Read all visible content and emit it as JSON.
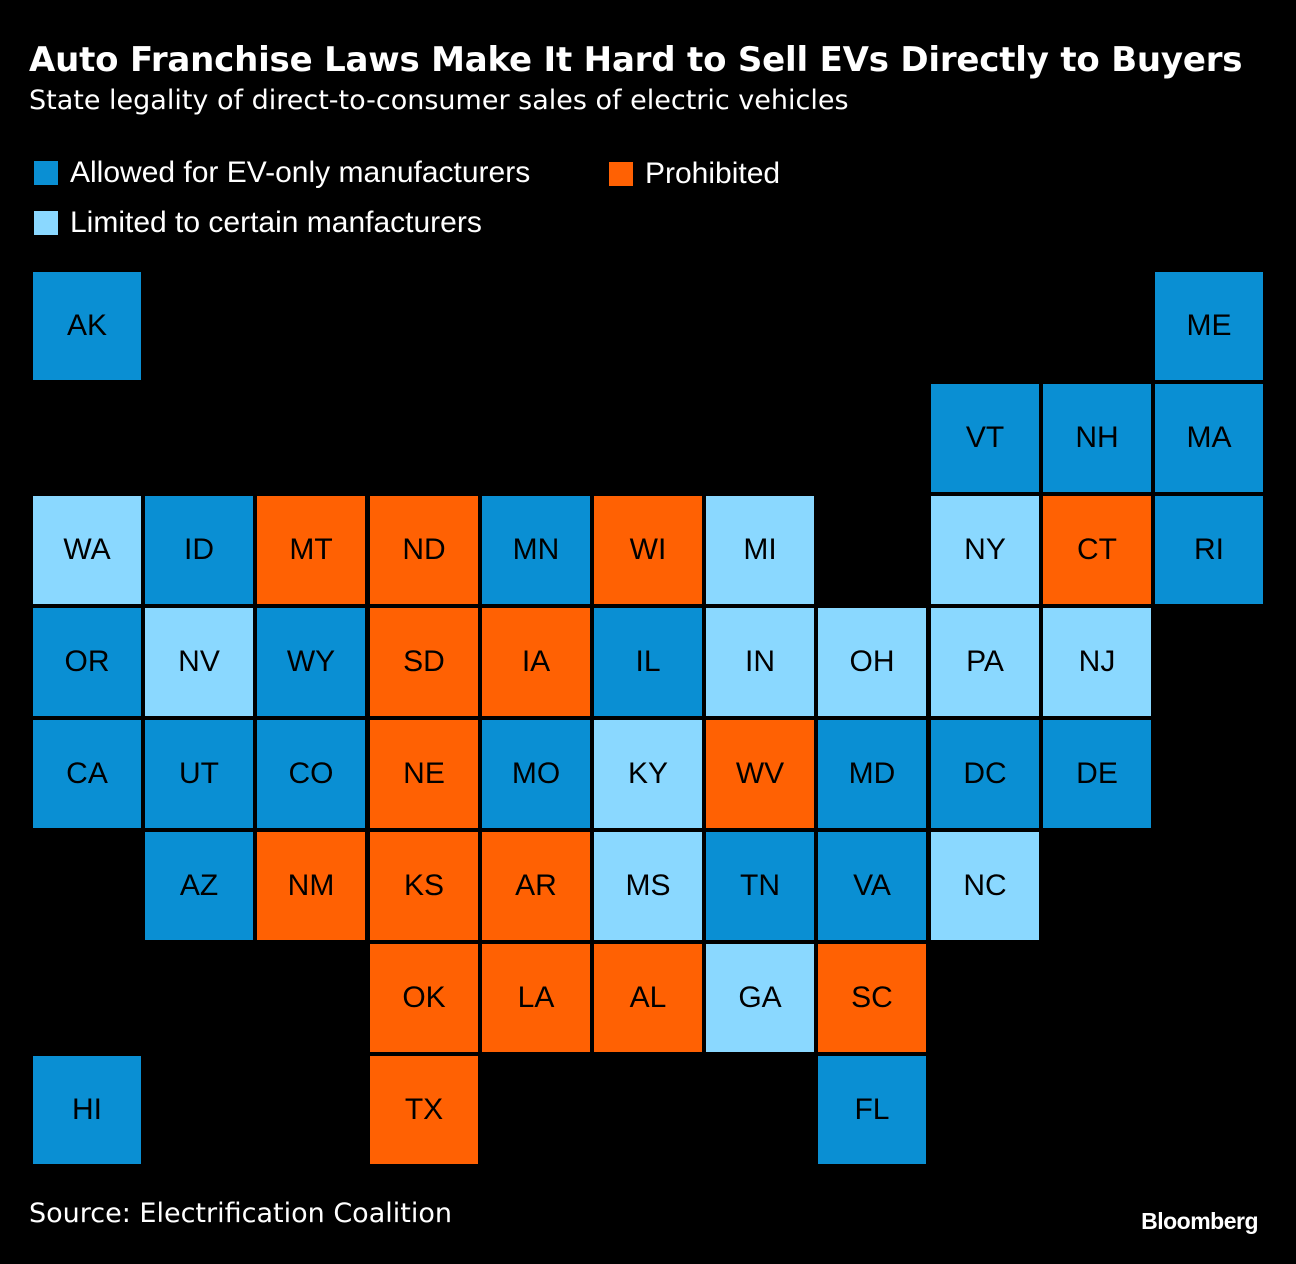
{
  "title": "Auto Franchise Laws Make It Hard to Sell EVs Directly to Buyers",
  "subtitle": "State legality of direct-to-consumer sales of electric vehicles",
  "colors": {
    "allowed": "#0A8FD3",
    "limited": "#8AD8FF",
    "prohibited": "#FF6103",
    "background": "#000000"
  },
  "legend": {
    "allowed": "Allowed for EV-only manufacturers",
    "prohibited": "Prohibited",
    "limited": "Limited to certain manfacturers"
  },
  "states": [
    {
      "abbr": "AK",
      "status": "allowed",
      "row": 0,
      "col": 0
    },
    {
      "abbr": "ME",
      "status": "allowed",
      "row": 0,
      "col": 10
    },
    {
      "abbr": "VT",
      "status": "allowed",
      "row": 1,
      "col": 8
    },
    {
      "abbr": "NH",
      "status": "allowed",
      "row": 1,
      "col": 9
    },
    {
      "abbr": "MA",
      "status": "allowed",
      "row": 1,
      "col": 10
    },
    {
      "abbr": "WA",
      "status": "limited",
      "row": 2,
      "col": 0
    },
    {
      "abbr": "ID",
      "status": "allowed",
      "row": 2,
      "col": 1
    },
    {
      "abbr": "MT",
      "status": "prohibited",
      "row": 2,
      "col": 2
    },
    {
      "abbr": "ND",
      "status": "prohibited",
      "row": 2,
      "col": 3
    },
    {
      "abbr": "MN",
      "status": "allowed",
      "row": 2,
      "col": 4
    },
    {
      "abbr": "WI",
      "status": "prohibited",
      "row": 2,
      "col": 5
    },
    {
      "abbr": "MI",
      "status": "limited",
      "row": 2,
      "col": 6
    },
    {
      "abbr": "NY",
      "status": "limited",
      "row": 2,
      "col": 8
    },
    {
      "abbr": "CT",
      "status": "prohibited",
      "row": 2,
      "col": 9
    },
    {
      "abbr": "RI",
      "status": "allowed",
      "row": 2,
      "col": 10
    },
    {
      "abbr": "OR",
      "status": "allowed",
      "row": 3,
      "col": 0
    },
    {
      "abbr": "NV",
      "status": "limited",
      "row": 3,
      "col": 1
    },
    {
      "abbr": "WY",
      "status": "allowed",
      "row": 3,
      "col": 2
    },
    {
      "abbr": "SD",
      "status": "prohibited",
      "row": 3,
      "col": 3
    },
    {
      "abbr": "IA",
      "status": "prohibited",
      "row": 3,
      "col": 4
    },
    {
      "abbr": "IL",
      "status": "allowed",
      "row": 3,
      "col": 5
    },
    {
      "abbr": "IN",
      "status": "limited",
      "row": 3,
      "col": 6
    },
    {
      "abbr": "OH",
      "status": "limited",
      "row": 3,
      "col": 7
    },
    {
      "abbr": "PA",
      "status": "limited",
      "row": 3,
      "col": 8
    },
    {
      "abbr": "NJ",
      "status": "limited",
      "row": 3,
      "col": 9
    },
    {
      "abbr": "CA",
      "status": "allowed",
      "row": 4,
      "col": 0
    },
    {
      "abbr": "UT",
      "status": "allowed",
      "row": 4,
      "col": 1
    },
    {
      "abbr": "CO",
      "status": "allowed",
      "row": 4,
      "col": 2
    },
    {
      "abbr": "NE",
      "status": "prohibited",
      "row": 4,
      "col": 3
    },
    {
      "abbr": "MO",
      "status": "allowed",
      "row": 4,
      "col": 4
    },
    {
      "abbr": "KY",
      "status": "limited",
      "row": 4,
      "col": 5
    },
    {
      "abbr": "WV",
      "status": "prohibited",
      "row": 4,
      "col": 6
    },
    {
      "abbr": "MD",
      "status": "allowed",
      "row": 4,
      "col": 7
    },
    {
      "abbr": "DC",
      "status": "allowed",
      "row": 4,
      "col": 8
    },
    {
      "abbr": "DE",
      "status": "allowed",
      "row": 4,
      "col": 9
    },
    {
      "abbr": "AZ",
      "status": "allowed",
      "row": 5,
      "col": 1
    },
    {
      "abbr": "NM",
      "status": "prohibited",
      "row": 5,
      "col": 2
    },
    {
      "abbr": "KS",
      "status": "prohibited",
      "row": 5,
      "col": 3
    },
    {
      "abbr": "AR",
      "status": "prohibited",
      "row": 5,
      "col": 4
    },
    {
      "abbr": "MS",
      "status": "limited",
      "row": 5,
      "col": 5
    },
    {
      "abbr": "TN",
      "status": "allowed",
      "row": 5,
      "col": 6
    },
    {
      "abbr": "VA",
      "status": "allowed",
      "row": 5,
      "col": 7
    },
    {
      "abbr": "NC",
      "status": "limited",
      "row": 5,
      "col": 8
    },
    {
      "abbr": "OK",
      "status": "prohibited",
      "row": 6,
      "col": 3
    },
    {
      "abbr": "LA",
      "status": "prohibited",
      "row": 6,
      "col": 4
    },
    {
      "abbr": "AL",
      "status": "prohibited",
      "row": 6,
      "col": 5
    },
    {
      "abbr": "GA",
      "status": "limited",
      "row": 6,
      "col": 6
    },
    {
      "abbr": "SC",
      "status": "prohibited",
      "row": 6,
      "col": 7
    },
    {
      "abbr": "HI",
      "status": "allowed",
      "row": 7,
      "col": 0
    },
    {
      "abbr": "TX",
      "status": "prohibited",
      "row": 7,
      "col": 3
    },
    {
      "abbr": "FL",
      "status": "allowed",
      "row": 7,
      "col": 7
    }
  ],
  "source": "Source: Electrification Coalition",
  "brand": "Bloomberg"
}
